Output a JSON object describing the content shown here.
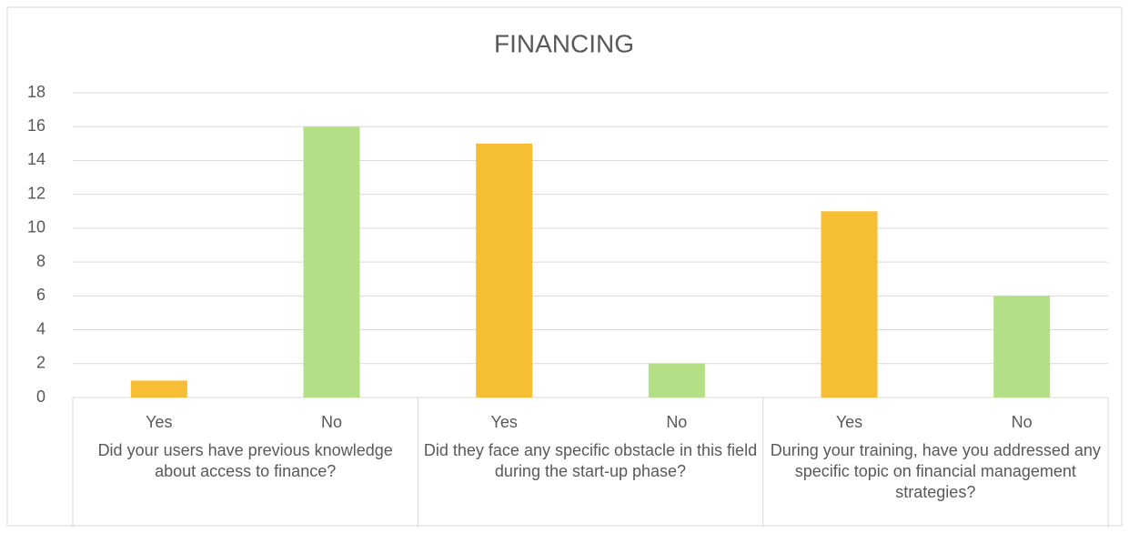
{
  "chart_data": {
    "type": "bar",
    "title": "FINANCING",
    "groups": [
      {
        "label": "Did your users have previous knowledge about access to finance?",
        "categories": [
          "Yes",
          "No"
        ],
        "values": [
          1,
          16
        ],
        "colors": [
          "#f6be35",
          "#b5df86"
        ]
      },
      {
        "label": "Did they face any specific obstacle in this field during the start-up phase?",
        "categories": [
          "Yes",
          "No"
        ],
        "values": [
          15,
          2
        ],
        "colors": [
          "#f6be35",
          "#b5df86"
        ]
      },
      {
        "label": "During your training, have you addressed any specific topic on financial management strategies?",
        "categories": [
          "Yes",
          "No"
        ],
        "values": [
          11,
          6
        ],
        "colors": [
          "#f6be35",
          "#b5df86"
        ]
      }
    ],
    "ylim": [
      0,
      18
    ],
    "yticks": [
      0,
      2,
      4,
      6,
      8,
      10,
      12,
      14,
      16,
      18
    ],
    "grid": true
  }
}
